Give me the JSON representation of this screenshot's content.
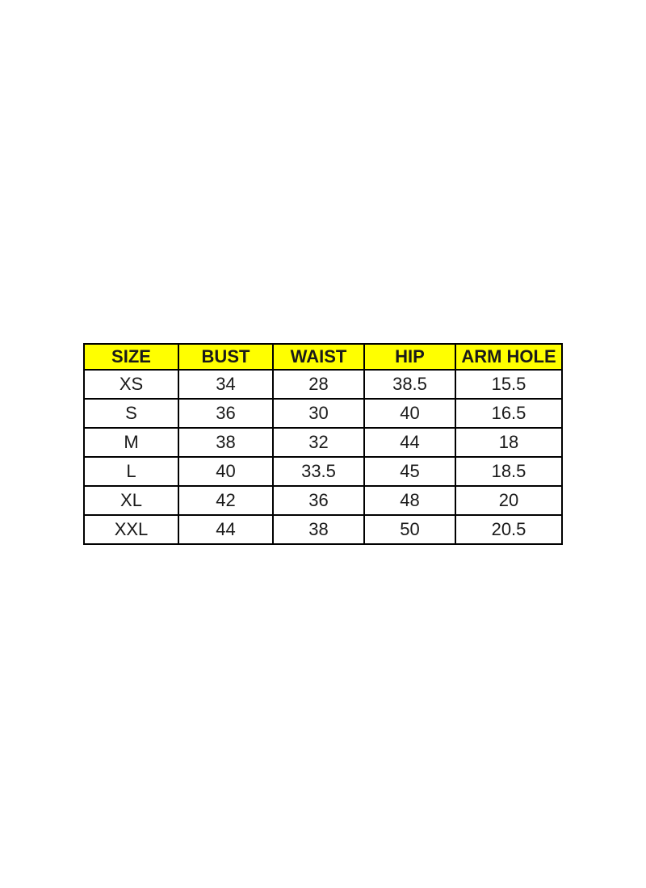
{
  "chart_data": {
    "type": "table",
    "columns": [
      "SIZE",
      "BUST",
      "WAIST",
      "HIP",
      "ARM HOLE"
    ],
    "rows": [
      [
        "XS",
        "34",
        "28",
        "38.5",
        "15.5"
      ],
      [
        "S",
        "36",
        "30",
        "40",
        "16.5"
      ],
      [
        "M",
        "38",
        "32",
        "44",
        "18"
      ],
      [
        "L",
        "40",
        "33.5",
        "45",
        "18.5"
      ],
      [
        "XL",
        "42",
        "36",
        "48",
        "20"
      ],
      [
        "XXL",
        "44",
        "38",
        "50",
        "20.5"
      ]
    ]
  },
  "colors": {
    "header_bg": "#FFFF00",
    "border": "#000000",
    "text": "#1A1A1A",
    "page_bg": "#FFFFFF"
  }
}
